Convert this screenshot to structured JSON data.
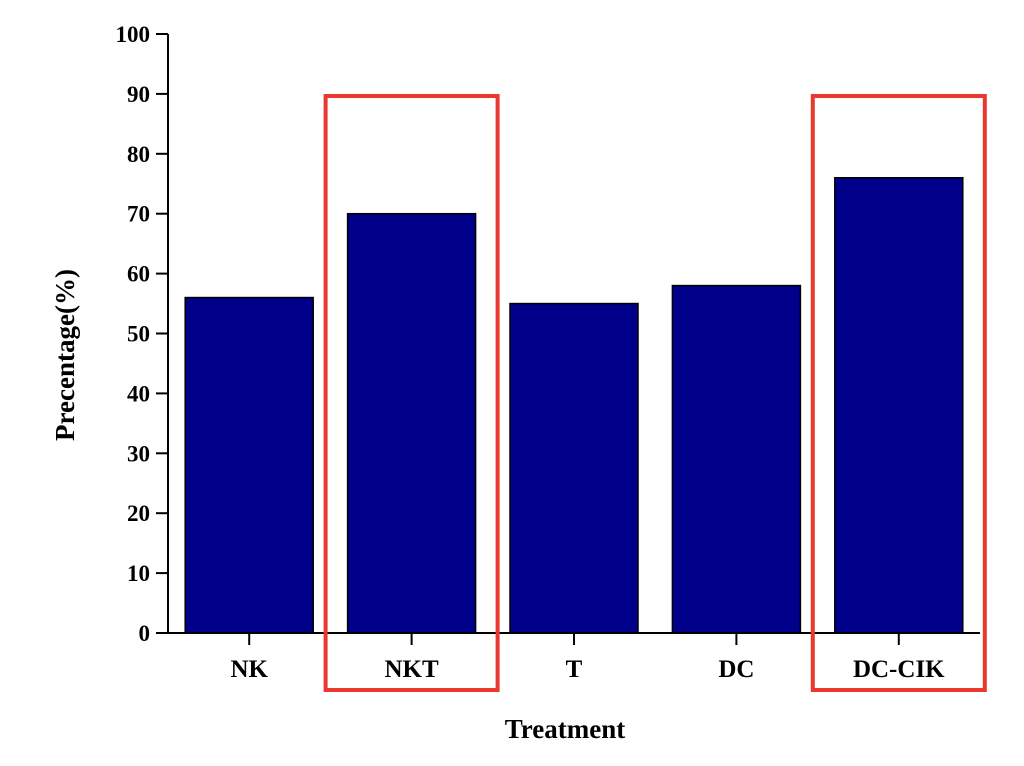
{
  "chart_data": {
    "type": "bar",
    "title": "",
    "xlabel": "Treatment",
    "ylabel": "Precentage(%)",
    "categories": [
      "NK",
      "NKT",
      "T",
      "DC",
      "DC-CIK"
    ],
    "values": [
      56,
      70,
      55,
      58,
      76
    ],
    "ylim": [
      0,
      100
    ],
    "yticks": [
      0,
      10,
      20,
      30,
      40,
      50,
      60,
      70,
      80,
      90,
      100
    ],
    "grid": false,
    "legend": "none",
    "bar_color": "#00008B",
    "highlighted_categories": [
      "NKT",
      "DC-CIK"
    ],
    "highlight_color": "#E8382F"
  }
}
